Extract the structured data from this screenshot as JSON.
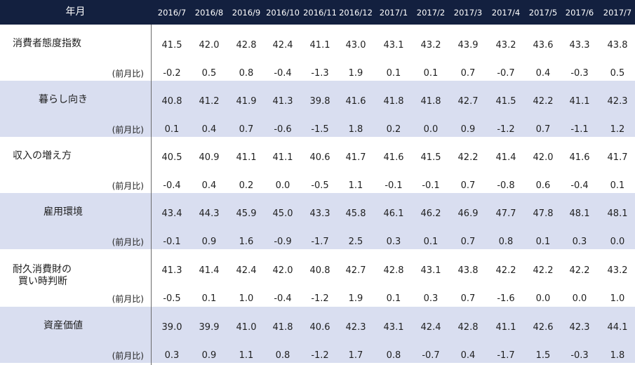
{
  "header": {
    "title": "年月",
    "columns": [
      "2016/7",
      "2016/8",
      "2016/9",
      "2016/10",
      "2016/11",
      "2016/12",
      "2017/1",
      "2017/2",
      "2017/3",
      "2017/4",
      "2017/5",
      "2017/6",
      "2017/7"
    ]
  },
  "colors": {
    "header_bg": "#13203f",
    "shade": "#d9def0"
  },
  "rows": [
    {
      "label": "消費者態度指数",
      "sub": "(前月比)",
      "values": [
        "41.5",
        "42.0",
        "42.8",
        "42.4",
        "41.1",
        "43.0",
        "43.1",
        "43.2",
        "43.9",
        "43.2",
        "43.6",
        "43.3",
        "43.8"
      ],
      "diffs": [
        "-0.2",
        "0.5",
        "0.8",
        "-0.4",
        "-1.3",
        "1.9",
        "0.1",
        "0.1",
        "0.7",
        "-0.7",
        "0.4",
        "-0.3",
        "0.5"
      ]
    },
    {
      "label": "暮らし向き",
      "sub": "(前月比)",
      "values": [
        "40.8",
        "41.2",
        "41.9",
        "41.3",
        "39.8",
        "41.6",
        "41.8",
        "41.8",
        "42.7",
        "41.5",
        "42.2",
        "41.1",
        "42.3"
      ],
      "diffs": [
        "0.1",
        "0.4",
        "0.7",
        "-0.6",
        "-1.5",
        "1.8",
        "0.2",
        "0.0",
        "0.9",
        "-1.2",
        "0.7",
        "-1.1",
        "1.2"
      ]
    },
    {
      "label": "収入の増え方",
      "sub": "(前月比)",
      "values": [
        "40.5",
        "40.9",
        "41.1",
        "41.1",
        "40.6",
        "41.7",
        "41.6",
        "41.5",
        "42.2",
        "41.4",
        "42.0",
        "41.6",
        "41.7"
      ],
      "diffs": [
        "-0.4",
        "0.4",
        "0.2",
        "0.0",
        "-0.5",
        "1.1",
        "-0.1",
        "-0.1",
        "0.7",
        "-0.8",
        "0.6",
        "-0.4",
        "0.1"
      ]
    },
    {
      "label": "雇用環境",
      "sub": "(前月比)",
      "values": [
        "43.4",
        "44.3",
        "45.9",
        "45.0",
        "43.3",
        "45.8",
        "46.1",
        "46.2",
        "46.9",
        "47.7",
        "47.8",
        "48.1",
        "48.1"
      ],
      "diffs": [
        "-0.1",
        "0.9",
        "1.6",
        "-0.9",
        "-1.7",
        "2.5",
        "0.3",
        "0.1",
        "0.7",
        "0.8",
        "0.1",
        "0.3",
        "0.0"
      ]
    },
    {
      "label_line1": "耐久消費財の",
      "label_line2": "買い時判断",
      "sub": "(前月比)",
      "values": [
        "41.3",
        "41.4",
        "42.4",
        "42.0",
        "40.8",
        "42.7",
        "42.8",
        "43.1",
        "43.8",
        "42.2",
        "42.2",
        "42.2",
        "43.2"
      ],
      "diffs": [
        "-0.5",
        "0.1",
        "1.0",
        "-0.4",
        "-1.2",
        "1.9",
        "0.1",
        "0.3",
        "0.7",
        "-1.6",
        "0.0",
        "0.0",
        "1.0"
      ]
    },
    {
      "label": "資産価値",
      "sub": "(前月比)",
      "values": [
        "39.0",
        "39.9",
        "41.0",
        "41.8",
        "40.6",
        "42.3",
        "43.1",
        "42.4",
        "42.8",
        "41.1",
        "42.6",
        "42.3",
        "44.1"
      ],
      "diffs": [
        "0.3",
        "0.9",
        "1.1",
        "0.8",
        "-1.2",
        "1.7",
        "0.8",
        "-0.7",
        "0.4",
        "-1.7",
        "1.5",
        "-0.3",
        "1.8"
      ]
    }
  ]
}
